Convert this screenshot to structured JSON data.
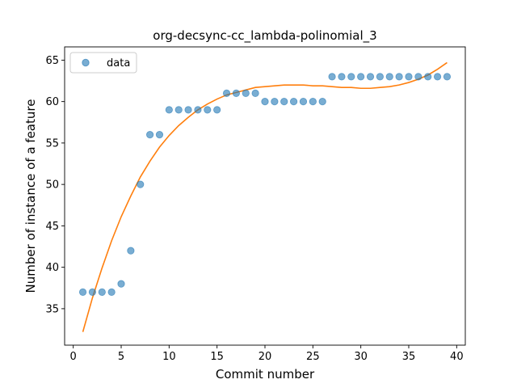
{
  "chart_data": {
    "type": "scatter",
    "title": "org-decsync-cc_lambda-polinomial_3",
    "xlabel": "Commit number",
    "ylabel": "Number of instance of a feature",
    "xlim": [
      -0.9,
      40.9
    ],
    "ylim": [
      30.6,
      66.6
    ],
    "xticks": [
      0,
      5,
      10,
      15,
      20,
      25,
      30,
      35,
      40
    ],
    "yticks": [
      35,
      40,
      45,
      50,
      55,
      60,
      65
    ],
    "legend": {
      "placement": "top-left",
      "entries": [
        "data"
      ]
    },
    "grid": false,
    "series": [
      {
        "name": "data",
        "kind": "scatter",
        "color": "#1f77b4",
        "x": [
          1,
          2,
          3,
          4,
          5,
          6,
          7,
          8,
          9,
          10,
          11,
          12,
          13,
          14,
          15,
          16,
          17,
          18,
          19,
          20,
          21,
          22,
          23,
          24,
          25,
          26,
          27,
          28,
          29,
          30,
          31,
          32,
          33,
          34,
          35,
          36,
          37,
          38,
          39
        ],
        "y": [
          37,
          37,
          37,
          37,
          38,
          42,
          50,
          56,
          56,
          59,
          59,
          59,
          59,
          59,
          59,
          61,
          61,
          61,
          61,
          60,
          60,
          60,
          60,
          60,
          60,
          60,
          63,
          63,
          63,
          63,
          63,
          63,
          63,
          63,
          63,
          63,
          63,
          63,
          63
        ]
      },
      {
        "kind": "line",
        "color": "#ff7f0e",
        "x": [
          1,
          2,
          3,
          4,
          5,
          6,
          7,
          8,
          9,
          10,
          11,
          12,
          13,
          14,
          15,
          16,
          17,
          18,
          19,
          20,
          21,
          22,
          23,
          24,
          25,
          26,
          27,
          28,
          29,
          30,
          31,
          32,
          33,
          34,
          35,
          36,
          37,
          38,
          39
        ],
        "y": [
          32.2,
          36.3,
          39.9,
          43.2,
          46.1,
          48.6,
          50.9,
          52.8,
          54.5,
          55.9,
          57.1,
          58.1,
          59.0,
          59.7,
          60.3,
          60.8,
          61.1,
          61.4,
          61.7,
          61.8,
          61.9,
          62.0,
          62.0,
          62.0,
          61.9,
          61.9,
          61.8,
          61.7,
          61.7,
          61.6,
          61.6,
          61.7,
          61.8,
          62.0,
          62.3,
          62.7,
          63.2,
          63.9,
          64.7
        ]
      }
    ]
  }
}
